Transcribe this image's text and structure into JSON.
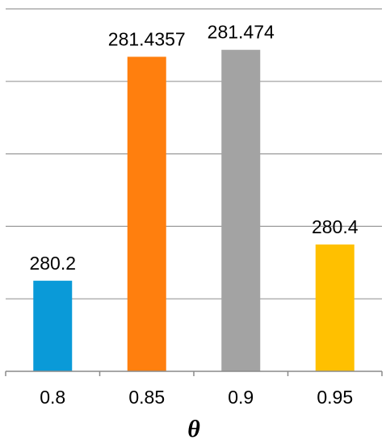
{
  "chart_data": {
    "type": "bar",
    "categories": [
      "0.8",
      "0.85",
      "0.9",
      "0.95"
    ],
    "values": [
      280.2,
      281.4357,
      281.474,
      280.4
    ],
    "data_labels": [
      "280.2",
      "281.4357",
      "281.474",
      "280.4"
    ],
    "bar_colors": [
      "#0a9ad8",
      "#ff7f0e",
      "#a3a3a3",
      "#ffc000"
    ],
    "xlabel": "θ",
    "ylabel": "",
    "title": "",
    "ylim": [
      279.7,
      281.7
    ],
    "gridlines": [
      279.7,
      280.1,
      280.5,
      280.9,
      281.3,
      281.7
    ],
    "grid": true,
    "legend": "none"
  }
}
